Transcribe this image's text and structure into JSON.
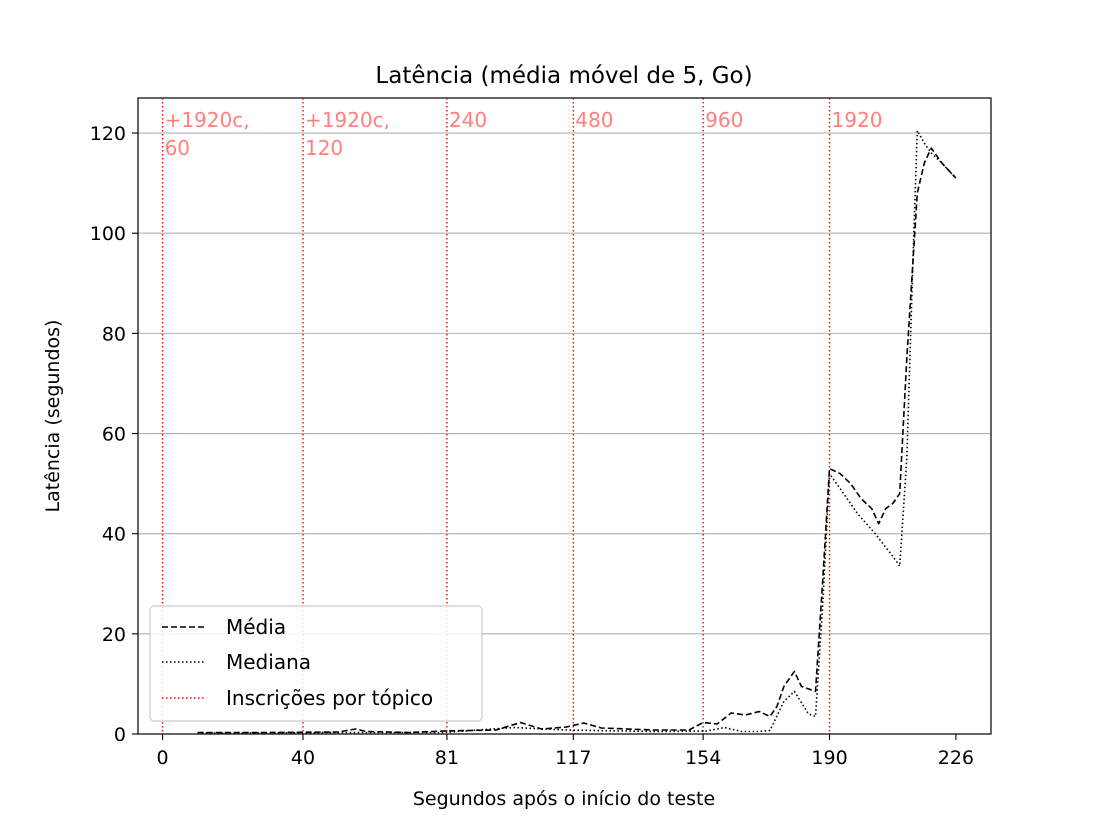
{
  "chart_data": {
    "type": "line",
    "title": "Latência (média móvel de 5, Go)",
    "xlabel": "Segundos após o início do teste",
    "ylabel": "Latência (segundos)",
    "xlim": [
      -7,
      236
    ],
    "ylim": [
      0,
      127
    ],
    "xticks": [
      0,
      40,
      81,
      117,
      154,
      190,
      226
    ],
    "yticks": [
      0,
      20,
      40,
      60,
      80,
      100,
      120
    ],
    "grid": "y",
    "legend_position": "lower-left",
    "vertical_markers": {
      "name": "Inscrições por tópico",
      "color": "#ff0000",
      "items": [
        {
          "x": 0,
          "lines": [
            "+1920c,",
            "60"
          ]
        },
        {
          "x": 40,
          "lines": [
            "+1920c,",
            "120"
          ]
        },
        {
          "x": 81,
          "lines": [
            "240"
          ]
        },
        {
          "x": 117,
          "lines": [
            "480"
          ]
        },
        {
          "x": 154,
          "lines": [
            "960"
          ]
        },
        {
          "x": 190,
          "lines": [
            "1920"
          ]
        }
      ]
    },
    "series": [
      {
        "name": "Média",
        "style": "dashed",
        "color": "#000000",
        "points": [
          [
            10,
            0.3
          ],
          [
            30,
            0.3
          ],
          [
            50,
            0.4
          ],
          [
            55,
            1.0
          ],
          [
            58,
            0.5
          ],
          [
            70,
            0.3
          ],
          [
            80,
            0.6
          ],
          [
            95,
            0.8
          ],
          [
            102,
            2.3
          ],
          [
            108,
            1.0
          ],
          [
            115,
            1.4
          ],
          [
            120,
            2.2
          ],
          [
            125,
            1.2
          ],
          [
            140,
            0.8
          ],
          [
            150,
            0.8
          ],
          [
            154,
            2.3
          ],
          [
            158,
            2.0
          ],
          [
            162,
            4.2
          ],
          [
            166,
            3.8
          ],
          [
            170,
            4.5
          ],
          [
            173,
            3.5
          ],
          [
            175,
            5.5
          ],
          [
            177,
            9.5
          ],
          [
            180,
            12.5
          ],
          [
            182,
            9.5
          ],
          [
            184,
            9.0
          ],
          [
            186,
            8.5
          ],
          [
            188,
            30
          ],
          [
            190,
            53
          ],
          [
            193,
            52
          ],
          [
            196,
            50
          ],
          [
            199,
            47
          ],
          [
            202,
            45
          ],
          [
            204,
            42
          ],
          [
            206,
            45
          ],
          [
            208,
            46
          ],
          [
            210,
            48
          ],
          [
            212,
            75
          ],
          [
            215,
            108
          ],
          [
            217,
            114
          ],
          [
            219,
            117
          ],
          [
            222,
            114
          ],
          [
            226,
            111
          ]
        ]
      },
      {
        "name": "Mediana",
        "style": "dotted",
        "color": "#000000",
        "points": [
          [
            10,
            0.2
          ],
          [
            30,
            0.2
          ],
          [
            50,
            0.3
          ],
          [
            80,
            0.3
          ],
          [
            100,
            1.3
          ],
          [
            115,
            0.8
          ],
          [
            140,
            0.5
          ],
          [
            155,
            0.6
          ],
          [
            160,
            1.3
          ],
          [
            165,
            0.5
          ],
          [
            170,
            0.5
          ],
          [
            173,
            0.7
          ],
          [
            177,
            6.5
          ],
          [
            180,
            8.5
          ],
          [
            184,
            4.0
          ],
          [
            186,
            3.5
          ],
          [
            188,
            25
          ],
          [
            190,
            52
          ],
          [
            193,
            49
          ],
          [
            198,
            44
          ],
          [
            203,
            40
          ],
          [
            208,
            35.5
          ],
          [
            210,
            33.5
          ],
          [
            212,
            55
          ],
          [
            214,
            100
          ],
          [
            215,
            120.5
          ],
          [
            217,
            118
          ],
          [
            219,
            116
          ],
          [
            222,
            114
          ],
          [
            226,
            111
          ]
        ]
      }
    ]
  },
  "legend": {
    "items": [
      {
        "label": "Média"
      },
      {
        "label": "Mediana"
      },
      {
        "label": "Inscrições por tópico"
      }
    ]
  }
}
